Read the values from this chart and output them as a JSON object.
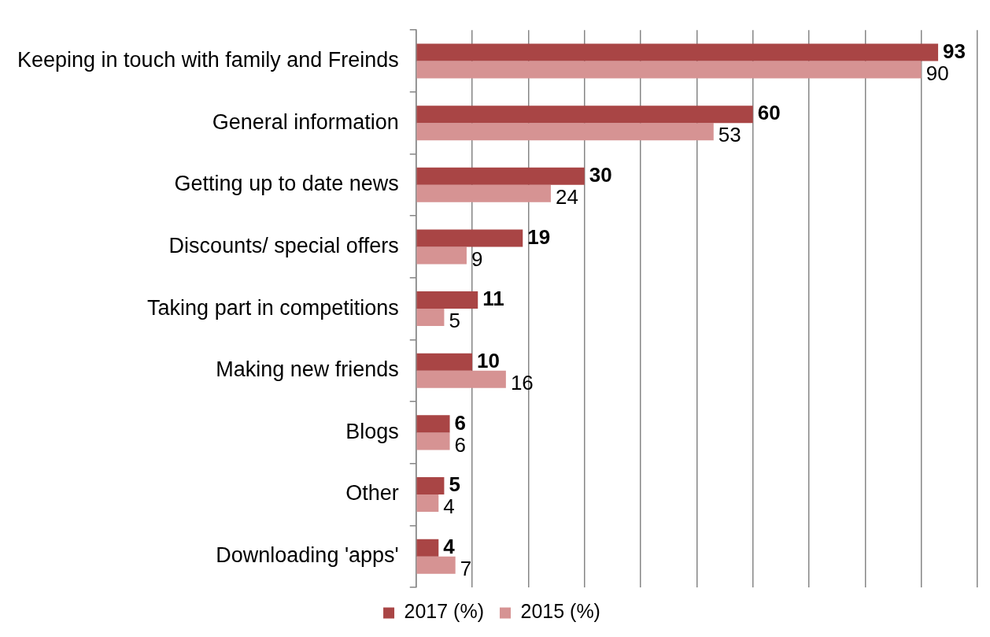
{
  "chart_data": {
    "type": "bar",
    "orientation": "horizontal",
    "categories": [
      "Keeping in touch with family and Freinds",
      "General information",
      "Getting up to date news",
      "Discounts/ special offers",
      "Taking part in competitions",
      "Making new friends",
      "Blogs",
      "Other",
      "Downloading 'apps'"
    ],
    "series": [
      {
        "name": "2017 (%)",
        "color": "#a94545",
        "values": [
          93,
          60,
          30,
          19,
          11,
          10,
          6,
          5,
          4
        ]
      },
      {
        "name": "2015 (%)",
        "color": "#d69393",
        "values": [
          90,
          53,
          24,
          9,
          5,
          16,
          6,
          4,
          7
        ]
      }
    ],
    "xlim": [
      0,
      100
    ],
    "xticks": [
      {
        "value": 0,
        "label": null
      },
      {
        "value": 10,
        "label": null
      },
      {
        "value": 20,
        "label": null
      },
      {
        "value": 30,
        "label": null
      },
      {
        "value": 40,
        "label": null
      },
      {
        "value": 50,
        "label": null
      },
      {
        "value": 60,
        "label": null
      },
      {
        "value": 70,
        "label": null
      },
      {
        "value": 80,
        "label": null
      },
      {
        "value": 90,
        "label": null
      },
      {
        "value": 100,
        "label": null
      }
    ],
    "tick_labels": "y",
    "grid": "x",
    "legend": "bottom",
    "data_labels": true
  }
}
